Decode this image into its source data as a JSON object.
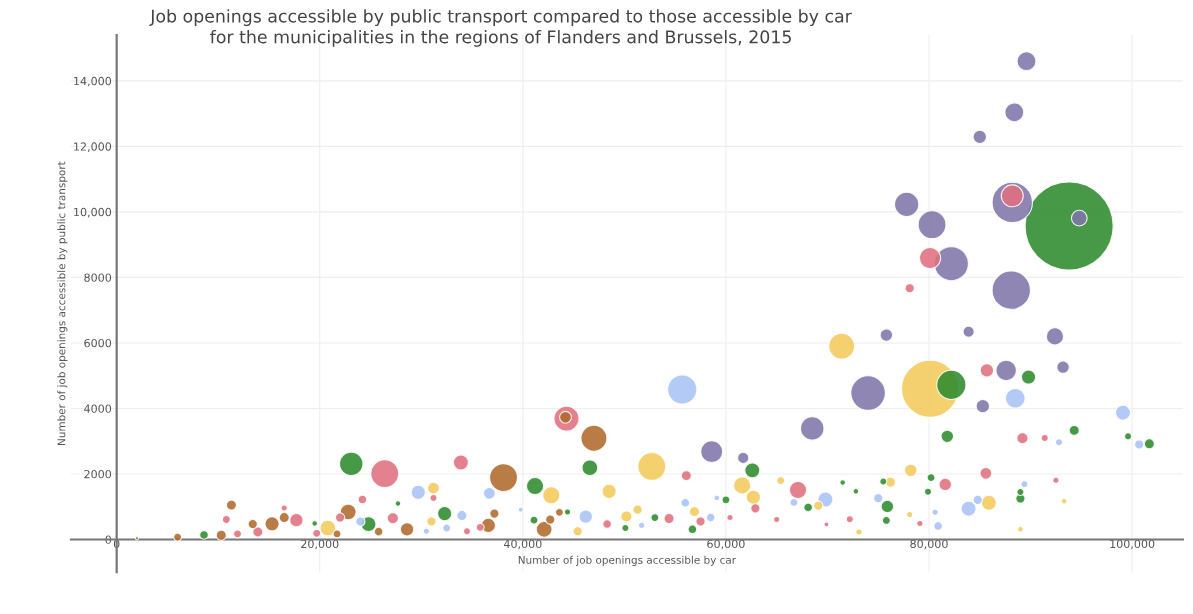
{
  "chart_data": {
    "type": "bubble",
    "title": "Job openings accessible by public transport compared to those accessible by car\nfor the municipalities in the regions of Flanders and Brussels, 2015",
    "xlabel": "Number of job openings accessible by car",
    "ylabel": "Number of job openings accessible by public transport",
    "xlim": [
      -4500,
      105000
    ],
    "ylim": [
      -1000,
      15400
    ],
    "xticks": [
      0,
      {
        "value": 20000,
        "label": "20,000"
      },
      {
        "value": 40000,
        "label": "40,000"
      },
      {
        "value": 60000,
        "label": "60,000"
      },
      {
        "value": 80000,
        "label": "80,000"
      },
      {
        "value": 100000,
        "label": "100,000"
      }
    ],
    "yticks": [
      0,
      2000,
      4000,
      6000,
      8000,
      {
        "value": 10000,
        "label": "10,000"
      },
      {
        "value": 12000,
        "label": "12,000"
      },
      {
        "value": 14000,
        "label": "14,000"
      }
    ],
    "grid": true,
    "marker": "circle",
    "series": [
      {
        "color": "#2e8b2e",
        "x": [
          93800,
          82200,
          89800,
          81800,
          94300,
          99600,
          101700,
          62600,
          80200,
          79900,
          75900,
          89000,
          89000,
          68100,
          60000,
          56700,
          75800,
          71500,
          72800,
          75500,
          53000,
          50100,
          23100,
          41200,
          46600,
          32300,
          24800,
          8600,
          27700,
          19500,
          44400,
          41100
        ],
        "values": [
          9570,
          4720,
          4960,
          3150,
          3330,
          3150,
          2920,
          2110,
          1890,
          1460,
          1010,
          1250,
          1450,
          980,
          1210,
          310,
          580,
          1740,
          1470,
          1770,
          670,
          350,
          2310,
          1630,
          2190,
          790,
          470,
          140,
          1100,
          490,
          840,
          590
        ],
        "sizes": [
          1,
          0.11,
          0.026,
          0.02,
          0.013,
          0.0064,
          0.013,
          0.029,
          0.008,
          0.0064,
          0.02,
          0.011,
          0.0064,
          0.0096,
          0.008,
          0.0096,
          0.008,
          0.004,
          0.004,
          0.0064,
          0.008,
          0.0064,
          0.071,
          0.038,
          0.032,
          0.026,
          0.029,
          0.0096,
          0.004,
          0.004,
          0.005,
          0.008
        ]
      },
      {
        "color": "#f2cb5a",
        "x": [
          80100,
          71400,
          52700,
          48500,
          61600,
          62700,
          78200,
          76200,
          85900,
          65400,
          93300,
          89000,
          73100,
          56900,
          50200,
          51300,
          78100,
          69100,
          20800,
          42800,
          31200,
          31000,
          45400
        ],
        "values": [
          4600,
          5900,
          2230,
          1470,
          1650,
          1290,
          2110,
          1750,
          1120,
          1800,
          1170,
          310,
          230,
          850,
          700,
          910,
          760,
          1030,
          350,
          1350,
          1570,
          550,
          250
        ],
        "sizes": [
          0.42,
          0.086,
          0.1,
          0.026,
          0.038,
          0.026,
          0.02,
          0.013,
          0.029,
          0.008,
          0.004,
          0.004,
          0.005,
          0.013,
          0.016,
          0.011,
          0.005,
          0.011,
          0.032,
          0.038,
          0.018,
          0.011,
          0.011
        ]
      },
      {
        "color": "#e06f7e",
        "x": [
          88200,
          80100,
          78100,
          85700,
          89200,
          91400,
          85600,
          81600,
          92500,
          56100,
          67100,
          62900,
          60400,
          72200,
          65000,
          54400,
          57500,
          48300,
          79100,
          69900,
          44300,
          26400,
          33900,
          24200,
          31200,
          22000,
          27200,
          17700,
          13900,
          10800,
          11900,
          19700,
          16500,
          34500,
          35800
        ],
        "values": [
          10490,
          8590,
          7670,
          5160,
          3090,
          3100,
          2020,
          1680,
          1810,
          1950,
          1510,
          950,
          670,
          620,
          610,
          640,
          550,
          470,
          490,
          460,
          3690,
          2010,
          2350,
          1220,
          1270,
          670,
          650,
          590,
          230,
          610,
          170,
          190,
          960,
          250,
          370
        ],
        "sizes": [
          0.062,
          0.058,
          0.011,
          0.023,
          0.016,
          0.0064,
          0.018,
          0.02,
          0.005,
          0.013,
          0.038,
          0.011,
          0.005,
          0.0064,
          0.005,
          0.013,
          0.011,
          0.0096,
          0.005,
          0.003,
          0.081,
          0.1,
          0.029,
          0.0096,
          0.0064,
          0.011,
          0.016,
          0.023,
          0.013,
          0.008,
          0.008,
          0.008,
          0.005,
          0.0064,
          0.008
        ]
      },
      {
        "color": "#a9c3f5",
        "x": [
          55700,
          88500,
          99100,
          100700,
          92800,
          69800,
          83900,
          84800,
          75000,
          89400,
          56000,
          58500,
          66700,
          80900,
          80600,
          59100,
          51700,
          29700,
          36700,
          46200,
          34000,
          39800,
          30500,
          32500,
          24000
        ],
        "values": [
          4580,
          4310,
          3870,
          2900,
          2970,
          1220,
          940,
          1210,
          1260,
          1690,
          1120,
          670,
          1130,
          410,
          830,
          1270,
          430,
          1440,
          1410,
          700,
          730,
          910,
          250,
          350,
          550
        ],
        "sizes": [
          0.11,
          0.05,
          0.029,
          0.011,
          0.0064,
          0.029,
          0.029,
          0.011,
          0.011,
          0.0064,
          0.0096,
          0.0096,
          0.008,
          0.0096,
          0.005,
          0.004,
          0.005,
          0.026,
          0.018,
          0.023,
          0.013,
          0.003,
          0.005,
          0.008,
          0.011
        ]
      },
      {
        "color": "#b06a2c",
        "x": [
          44200,
          38100,
          47000,
          11300,
          22800,
          15300,
          16500,
          28600,
          37200,
          36600,
          42100,
          42700,
          43600,
          6000,
          10300,
          25800,
          21700,
          2000,
          13400
        ],
        "values": [
          3730,
          1890,
          3090,
          1050,
          840,
          480,
          670,
          310,
          790,
          430,
          310,
          610,
          830,
          70,
          130,
          240,
          170,
          40,
          470
        ],
        "sizes": [
          0.018,
          0.1,
          0.087,
          0.013,
          0.032,
          0.026,
          0.013,
          0.023,
          0.011,
          0.026,
          0.032,
          0.011,
          0.008,
          0.008,
          0.013,
          0.0096,
          0.008,
          0.0013,
          0.011
        ]
      },
      {
        "color": "#7f75aa",
        "x": [
          89600,
          88400,
          85000,
          77800,
          80300,
          88200,
          94800,
          82200,
          88100,
          75800,
          83900,
          92400,
          87600,
          93200,
          74000,
          85300,
          68500,
          58600,
          61700
        ],
        "values": [
          14600,
          13040,
          12290,
          10230,
          9610,
          10290,
          9810,
          8420,
          7610,
          6240,
          6340,
          6200,
          5160,
          5260,
          4470,
          4070,
          3390,
          2680,
          2490
        ],
        "sizes": [
          0.046,
          0.046,
          0.023,
          0.076,
          0.1,
          0.21,
          0.032,
          0.15,
          0.19,
          0.02,
          0.016,
          0.038,
          0.054,
          0.02,
          0.154,
          0.023,
          0.071,
          0.062,
          0.016
        ]
      }
    ]
  }
}
